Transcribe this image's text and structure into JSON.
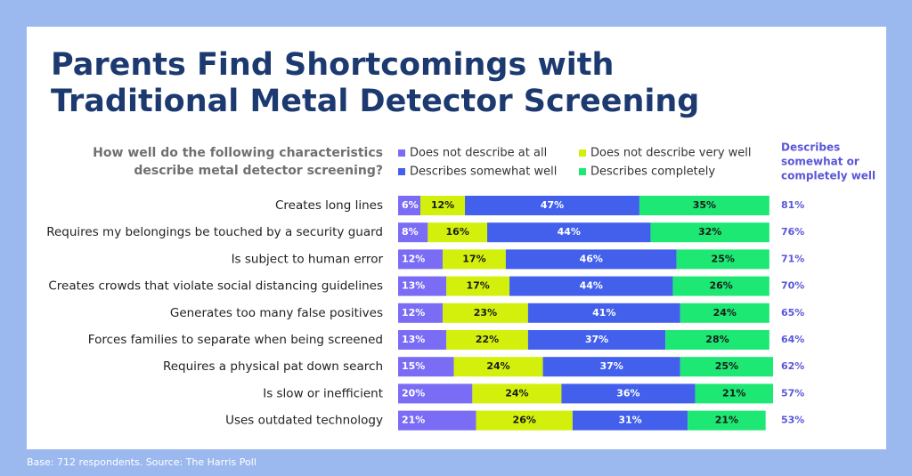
{
  "chart_data": {
    "type": "stacked-bar-horizontal",
    "title": [
      "Parents Find Shortcomings with",
      "Traditional Metal Detector Screening"
    ],
    "question": [
      "How well do the following characteristics",
      "describe metal detector screening?"
    ],
    "categories": [
      "Creates long lines",
      "Requires my belongings be touched by a security guard",
      "Is subject to human error",
      "Creates crowds that violate social distancing guidelines",
      "Generates too many false positives",
      "Forces families to separate when being screened",
      "Requires a physical pat down search",
      "Is slow or inefficient",
      "Uses outdated technology"
    ],
    "series": [
      {
        "name": "Does not describe at all",
        "color": "#7b6cf6",
        "values": [
          6,
          8,
          12,
          13,
          12,
          13,
          15,
          20,
          21
        ],
        "value_labels": [
          "6%",
          "8%",
          "12%",
          "13%",
          "12%",
          "13%",
          "15%",
          "20%",
          "21%"
        ]
      },
      {
        "name": "Does not describe very well",
        "color": "#d2f00c",
        "values": [
          12,
          16,
          17,
          17,
          23,
          22,
          24,
          24,
          26
        ],
        "value_labels": [
          "12%",
          "16%",
          "17%",
          "17%",
          "23%",
          "22%",
          "24%",
          "24%",
          "26%"
        ]
      },
      {
        "name": "Describes somewhat well",
        "color": "#4360ec",
        "values": [
          47,
          44,
          46,
          44,
          41,
          37,
          37,
          36,
          31
        ],
        "value_labels": [
          "47%",
          "44%",
          "46%",
          "44%",
          "41%",
          "37%",
          "37%",
          "36%",
          "31%"
        ]
      },
      {
        "name": "Describes completely",
        "color": "#1de874",
        "values": [
          35,
          32,
          25,
          26,
          24,
          28,
          25,
          21,
          21
        ],
        "value_labels": [
          "35%",
          "32%",
          "25%",
          "26%",
          "24%",
          "28%",
          "25%",
          "21%",
          "21%"
        ]
      }
    ],
    "net": {
      "name": [
        "Describes",
        "somewhat or",
        "completely well"
      ],
      "color": "#5a57d8",
      "values": [
        81,
        76,
        71,
        70,
        65,
        64,
        62,
        57,
        53
      ],
      "value_labels": [
        "81%",
        "76%",
        "71%",
        "70%",
        "65%",
        "64%",
        "62%",
        "57%",
        "53%"
      ]
    },
    "footnote": "Base: 712 respondents.  Source: The Harris Poll"
  }
}
